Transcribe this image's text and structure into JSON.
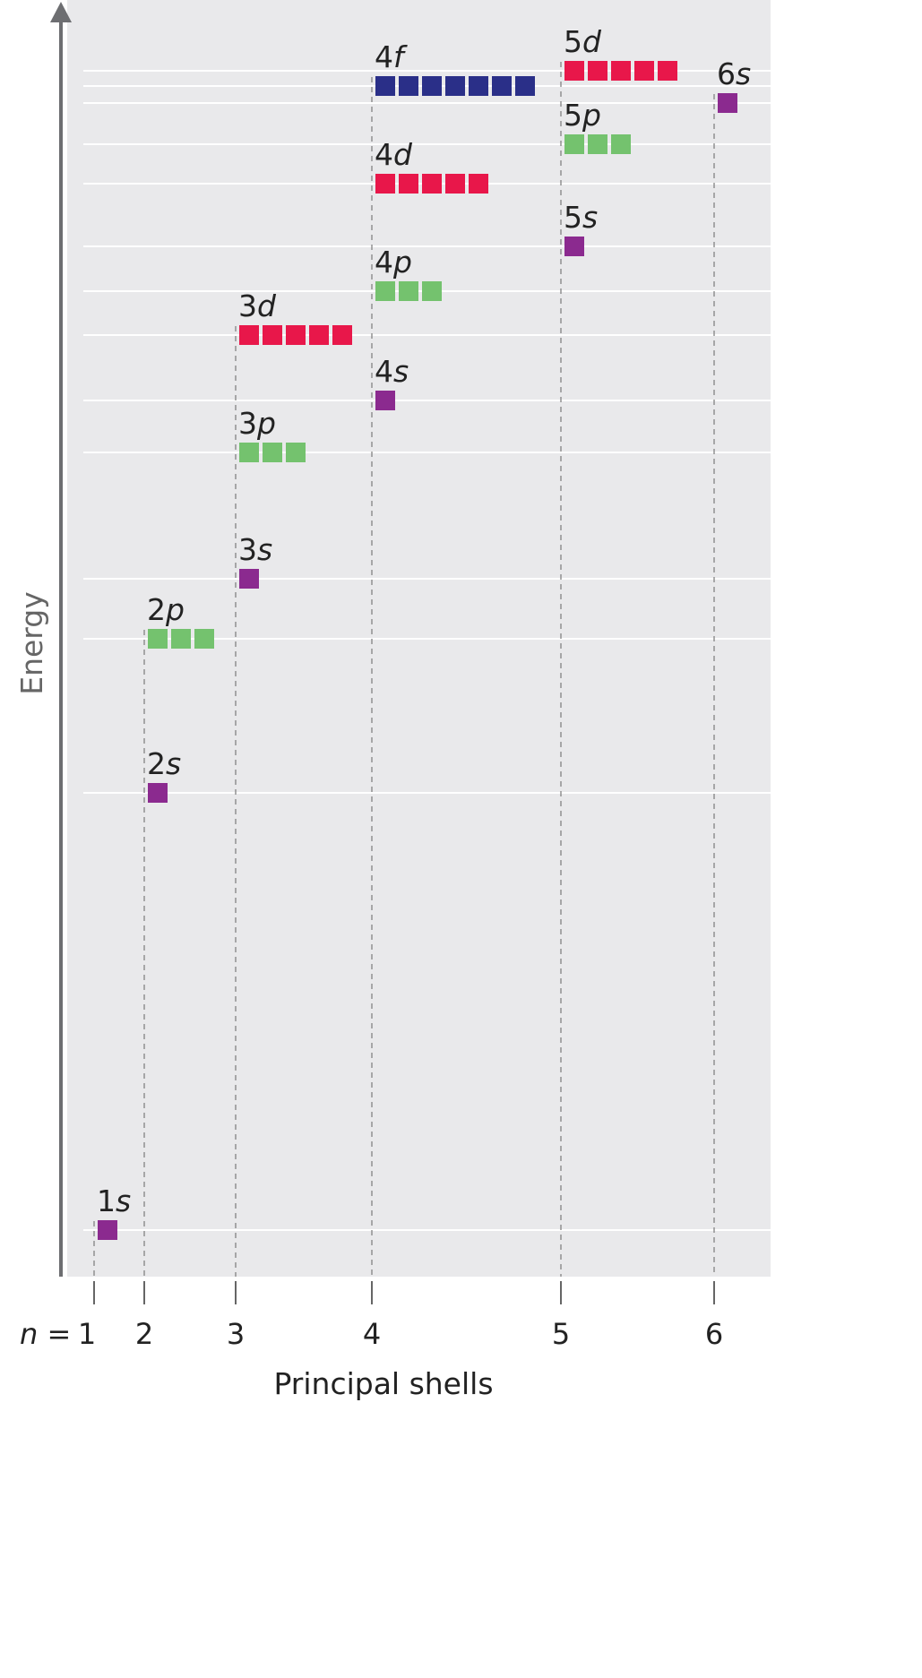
{
  "diagram": {
    "y_axis_label": "Energy",
    "x_axis_label": "Principal shells",
    "n_prefix": "n",
    "n_equals": " = ",
    "shells": [
      "1",
      "2",
      "3",
      "4",
      "5",
      "6"
    ],
    "colors": {
      "s": "#8b2a8f",
      "p": "#74c26e",
      "d": "#e8174a",
      "f": "#2a2f88",
      "panel": "#e9e9eb",
      "axis": "#6d6e71"
    },
    "orbitals": [
      {
        "n": "1",
        "sub": "s",
        "boxes": 1
      },
      {
        "n": "2",
        "sub": "s",
        "boxes": 1
      },
      {
        "n": "2",
        "sub": "p",
        "boxes": 3
      },
      {
        "n": "3",
        "sub": "s",
        "boxes": 1
      },
      {
        "n": "3",
        "sub": "p",
        "boxes": 3
      },
      {
        "n": "4",
        "sub": "s",
        "boxes": 1
      },
      {
        "n": "3",
        "sub": "d",
        "boxes": 5
      },
      {
        "n": "4",
        "sub": "p",
        "boxes": 3
      },
      {
        "n": "5",
        "sub": "s",
        "boxes": 1
      },
      {
        "n": "4",
        "sub": "d",
        "boxes": 5
      },
      {
        "n": "5",
        "sub": "p",
        "boxes": 3
      },
      {
        "n": "6",
        "sub": "s",
        "boxes": 1
      },
      {
        "n": "4",
        "sub": "f",
        "boxes": 7
      },
      {
        "n": "5",
        "sub": "d",
        "boxes": 5
      }
    ]
  }
}
